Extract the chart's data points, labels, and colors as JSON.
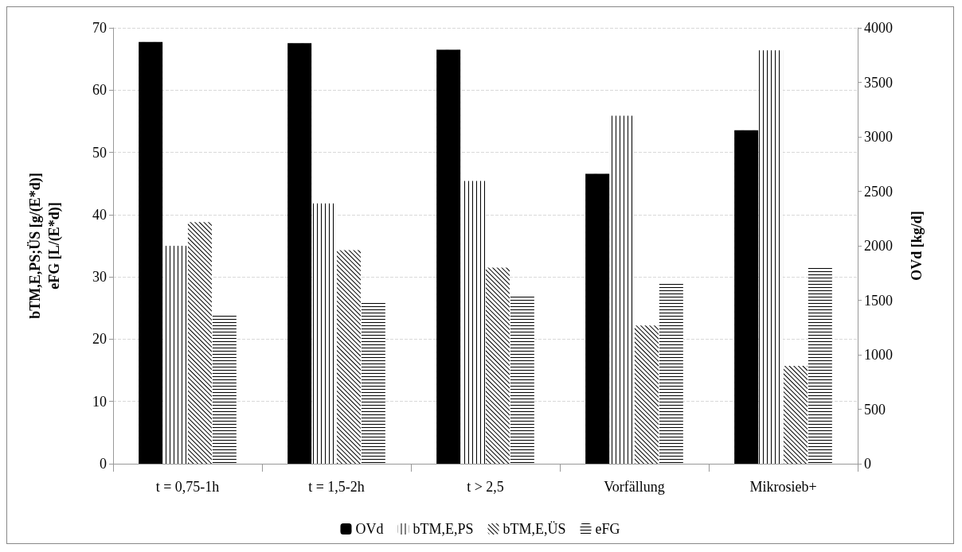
{
  "chart_data": {
    "type": "bar",
    "categories": [
      "t = 0,75-1h",
      "t = 1,5-2h",
      "t > 2,5",
      "Vorfällung",
      "Mikrosieb+"
    ],
    "ylabel": "bTM,E,PS;ÜS [g/(E*d)]\neFG [L/(E*d)]",
    "y2label": "OVd [kg/d]",
    "ylim": [
      0,
      70
    ],
    "yticks": [
      0,
      10,
      20,
      30,
      40,
      50,
      60,
      70
    ],
    "y2lim": [
      0,
      4000
    ],
    "y2ticks": [
      0,
      500,
      1000,
      1500,
      2000,
      2500,
      3000,
      3500,
      4000
    ],
    "grid": "y",
    "legend": "bottom",
    "series": [
      {
        "name": "OVd",
        "color": "#000000",
        "axis": "y2",
        "values": [
          3870,
          3860,
          3800,
          2660,
          3060
        ]
      },
      {
        "name": "bTM,E,PS",
        "color": "#000000",
        "values": [
          35,
          41.8,
          45.4,
          55.9,
          66.4
        ]
      },
      {
        "name": "bTM,E,ÜS",
        "color": "#000000",
        "values": [
          38.8,
          34.3,
          31.5,
          22.2,
          15.7
        ]
      },
      {
        "name": "eFG",
        "color": "#000000",
        "values": [
          23.8,
          26,
          27,
          29.2,
          31.8
        ]
      }
    ]
  }
}
